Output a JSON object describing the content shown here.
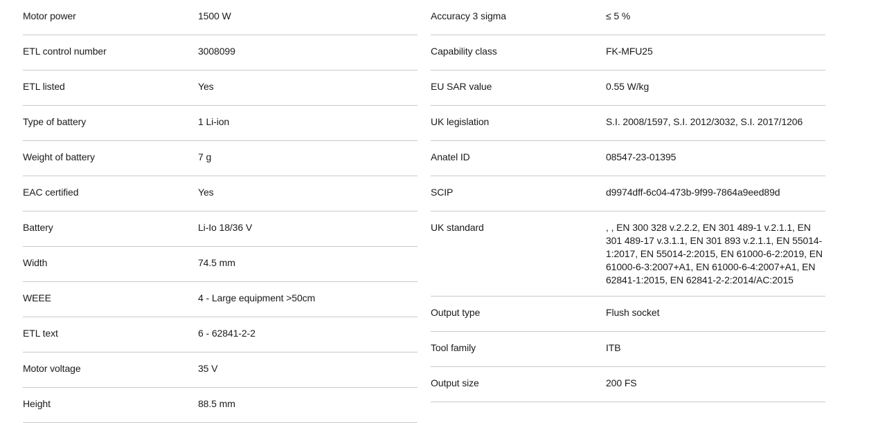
{
  "spec_table": {
    "colors": {
      "background": "#ffffff",
      "text": "#1a1a1a",
      "divider": "#c8c8c8"
    },
    "columns": [
      {
        "rows": [
          {
            "label": "Motor power",
            "value": "1500 W"
          },
          {
            "label": "ETL control number",
            "value": "3008099"
          },
          {
            "label": "ETL listed",
            "value": "Yes"
          },
          {
            "label": "Type of battery",
            "value": "1 Li-ion"
          },
          {
            "label": "Weight of battery",
            "value": "7 g"
          },
          {
            "label": "EAC certified",
            "value": "Yes"
          },
          {
            "label": "Battery",
            "value": "Li-Io 18/36 V"
          },
          {
            "label": "Width",
            "value": "74.5 mm"
          },
          {
            "label": "WEEE",
            "value": "4 - Large equipment >50cm"
          },
          {
            "label": "ETL text",
            "value": "6 - 62841-2-2"
          },
          {
            "label": "Motor voltage",
            "value": "35 V"
          },
          {
            "label": "Height",
            "value": "88.5 mm"
          }
        ]
      },
      {
        "rows": [
          {
            "label": "Accuracy 3 sigma",
            "value": "≤ 5 %"
          },
          {
            "label": "Capability class",
            "value": "FK-MFU25"
          },
          {
            "label": "EU SAR value",
            "value": "0.55 W/kg"
          },
          {
            "label": "UK legislation",
            "value": "S.I. 2008/1597, S.I. 2012/3032, S.I. 2017/1206"
          },
          {
            "label": "Anatel ID",
            "value": "08547-23-01395"
          },
          {
            "label": "SCIP",
            "value": "d9974dff-6c04-473b-9f99-7864a9eed89d"
          },
          {
            "label": "UK standard",
            "value": ", , EN 300 328 v.2.2.2, EN 301 489-1 v.2.1.1, EN 301 489-17 v.3.1.1, EN 301 893 v.2.1.1, EN 55014-1:2017, EN 55014-2:2015, EN 61000-6-2:2019, EN 61000-6-3:2007+A1, EN 61000-6-4:2007+A1, EN 62841-1:2015, EN 62841-2-2:2014/AC:2015"
          },
          {
            "label": "Output type",
            "value": "Flush socket"
          },
          {
            "label": "Tool family",
            "value": "ITB"
          },
          {
            "label": "Output size",
            "value": "200 FS"
          }
        ]
      }
    ]
  }
}
